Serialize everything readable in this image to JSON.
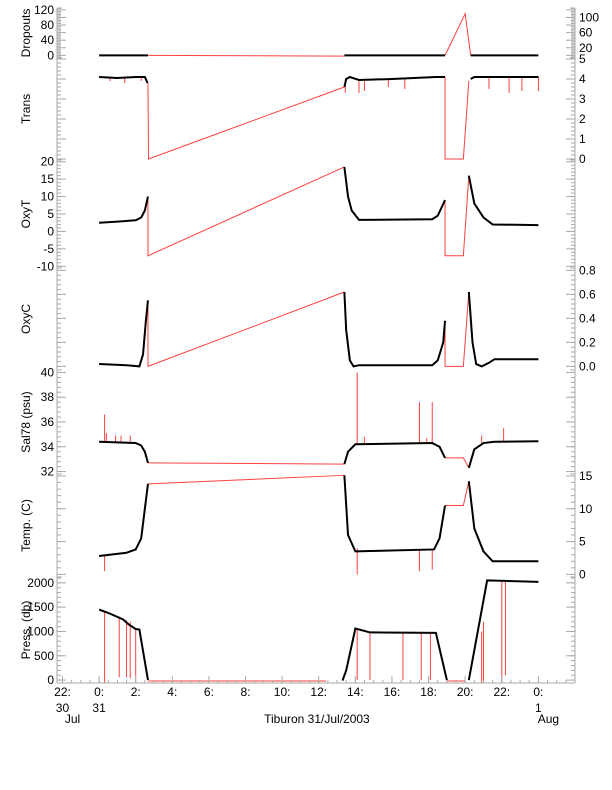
{
  "chart_data": {
    "type": "line",
    "title": "Tiburon 31/Jul/2003",
    "xlim_hours_from_31jul_0000": [
      -2.3,
      26
    ],
    "x_ticks": [
      {
        "t": -2,
        "l1": "22:",
        "l2": "30",
        "l3": "Jul"
      },
      {
        "t": 0,
        "l1": "0:",
        "l2": "31",
        "l3": ""
      },
      {
        "t": 2,
        "l1": "2:",
        "l2": "",
        "l3": ""
      },
      {
        "t": 4,
        "l1": "4:",
        "l2": "",
        "l3": ""
      },
      {
        "t": 6,
        "l1": "6:",
        "l2": "",
        "l3": ""
      },
      {
        "t": 8,
        "l1": "8:",
        "l2": "",
        "l3": ""
      },
      {
        "t": 10,
        "l1": "10:",
        "l2": "",
        "l3": ""
      },
      {
        "t": 12,
        "l1": "12:",
        "l2": "",
        "l3": ""
      },
      {
        "t": 14,
        "l1": "14:",
        "l2": "",
        "l3": ""
      },
      {
        "t": 16,
        "l1": "16:",
        "l2": "",
        "l3": ""
      },
      {
        "t": 18,
        "l1": "18:",
        "l2": "",
        "l3": ""
      },
      {
        "t": 20,
        "l1": "20:",
        "l2": "",
        "l3": ""
      },
      {
        "t": 22,
        "l1": "22:",
        "l2": "",
        "l3": ""
      },
      {
        "t": 24,
        "l1": "0:",
        "l2": "1",
        "l3": "Aug"
      }
    ],
    "colors": {
      "measured": "#000000",
      "interpolated": "#ff4040",
      "axis": "#aaaaaa"
    },
    "panels": [
      {
        "ylabel": "Dropouts",
        "ylim": [
          -7,
          125
        ],
        "ticks": [
          0,
          20,
          40,
          60,
          80,
          100,
          120
        ],
        "tick_labels": [
          "0",
          "20",
          "40",
          "60",
          "80",
          "100",
          "120"
        ],
        "black": [
          [
            [
              0,
              0
            ],
            [
              2.67,
              0
            ]
          ],
          [
            [
              13.4,
              0
            ],
            [
              18.9,
              0
            ]
          ],
          [
            [
              20.3,
              0
            ],
            [
              24,
              0
            ]
          ]
        ],
        "red": [
          [
            [
              2.67,
              0
            ],
            [
              13.4,
              -2
            ]
          ],
          [
            [
              18.9,
              0
            ],
            [
              20,
              110
            ],
            [
              20.3,
              0
            ]
          ]
        ],
        "spikes": []
      },
      {
        "ylabel": "Trans",
        "ylim": [
          -0.05,
          5.05
        ],
        "ticks": [
          0,
          1,
          2,
          3,
          4,
          5
        ],
        "tick_labels": [
          "0",
          "1",
          "2",
          "3",
          "4",
          "5"
        ],
        "black": [
          [
            [
              0,
              4.1
            ],
            [
              1,
              4.05
            ],
            [
              2,
              4.1
            ],
            [
              2.5,
              4.1
            ],
            [
              2.65,
              3.8
            ]
          ],
          [
            [
              13.4,
              3.6
            ],
            [
              13.5,
              4.0
            ],
            [
              13.7,
              4.1
            ],
            [
              14.2,
              3.95
            ],
            [
              16,
              4.0
            ],
            [
              18.4,
              4.1
            ],
            [
              18.9,
              4.1
            ]
          ],
          [
            [
              20.3,
              4.0
            ],
            [
              20.5,
              4.1
            ],
            [
              22,
              4.1
            ],
            [
              24,
              4.1
            ]
          ]
        ],
        "red": [
          [
            [
              2.67,
              3.8
            ],
            [
              2.7,
              0
            ],
            [
              13.4,
              3.6
            ]
          ],
          [
            [
              18.9,
              4.1
            ],
            [
              18.9,
              0
            ],
            [
              19.9,
              0
            ],
            [
              20.2,
              3.9
            ]
          ]
        ],
        "spikes": [
          [
            0.6,
            4.1,
            3.9
          ],
          [
            1.4,
            4.1,
            3.8
          ],
          [
            2.3,
            4.1,
            3.9
          ],
          [
            13.45,
            4.0,
            3.3
          ],
          [
            14.2,
            4.0,
            3.3
          ],
          [
            14.5,
            4.0,
            3.4
          ],
          [
            15.8,
            4.0,
            3.6
          ],
          [
            16.7,
            4.0,
            3.5
          ],
          [
            21.3,
            4.1,
            3.5
          ],
          [
            22.4,
            4.1,
            3.3
          ],
          [
            23.1,
            4.1,
            3.4
          ],
          [
            24,
            4.1,
            3.4
          ]
        ]
      },
      {
        "ylabel": "OxyT",
        "ylim": [
          -10.5,
          20.5
        ],
        "ticks": [
          -10,
          -5,
          0,
          5,
          10,
          15,
          20
        ],
        "tick_labels": [
          "-10",
          "-5",
          "0",
          "5",
          "10",
          "15",
          "20"
        ],
        "black": [
          [
            [
              0,
              2.5
            ],
            [
              1,
              2.8
            ],
            [
              2,
              3.2
            ],
            [
              2.3,
              4
            ],
            [
              2.5,
              6
            ],
            [
              2.67,
              10
            ]
          ],
          [
            [
              13.4,
              18.5
            ],
            [
              13.6,
              10
            ],
            [
              13.8,
              6
            ],
            [
              14.2,
              3.3
            ],
            [
              18.2,
              3.5
            ],
            [
              18.5,
              4.5
            ],
            [
              18.9,
              9
            ]
          ],
          [
            [
              20.2,
              16
            ],
            [
              20.5,
              8
            ],
            [
              21,
              4
            ],
            [
              21.5,
              2
            ],
            [
              24,
              1.8
            ]
          ]
        ],
        "red": [
          [
            [
              2.67,
              10
            ],
            [
              2.67,
              -7
            ],
            [
              13.4,
              18.5
            ]
          ],
          [
            [
              18.9,
              9
            ],
            [
              18.9,
              -7
            ],
            [
              19.9,
              -7
            ],
            [
              20.2,
              16
            ]
          ]
        ],
        "spikes": []
      },
      {
        "ylabel": "OxyC",
        "ylim": [
          -0.03,
          0.82
        ],
        "ticks": [
          0,
          0.2,
          0.4,
          0.6,
          0.8
        ],
        "tick_labels": [
          "0.0",
          "0.2",
          "0.4",
          "0.6",
          "0.8"
        ],
        "black": [
          [
            [
              0,
              0.02
            ],
            [
              1.5,
              0.01
            ],
            [
              2.2,
              0.0
            ],
            [
              2.4,
              0.1
            ],
            [
              2.55,
              0.37
            ],
            [
              2.67,
              0.55
            ]
          ],
          [
            [
              13.4,
              0.62
            ],
            [
              13.5,
              0.3
            ],
            [
              13.7,
              0.05
            ],
            [
              13.9,
              0.0
            ],
            [
              14.2,
              0.01
            ],
            [
              18.2,
              0.01
            ],
            [
              18.5,
              0.05
            ],
            [
              18.8,
              0.2
            ],
            [
              18.9,
              0.38
            ]
          ],
          [
            [
              20.2,
              0.62
            ],
            [
              20.4,
              0.2
            ],
            [
              20.6,
              0.02
            ],
            [
              20.9,
              0.0
            ],
            [
              21.3,
              0.03
            ],
            [
              21.6,
              0.06
            ],
            [
              24,
              0.06
            ]
          ]
        ],
        "red": [
          [
            [
              2.67,
              0.55
            ],
            [
              2.67,
              0
            ],
            [
              13.4,
              0.62
            ]
          ],
          [
            [
              18.9,
              0.38
            ],
            [
              18.9,
              0
            ],
            [
              19.9,
              0
            ],
            [
              20.2,
              0.62
            ]
          ]
        ],
        "spikes": []
      },
      {
        "ylabel": "Sal78 (psu)",
        "ylim": [
          31.8,
          40.2
        ],
        "ticks": [
          32,
          34,
          36,
          38,
          40
        ],
        "tick_labels": [
          "32",
          "34",
          "36",
          "38",
          "40"
        ],
        "black": [
          [
            [
              0,
              34.4
            ],
            [
              2,
              34.3
            ],
            [
              2.3,
              34.1
            ],
            [
              2.5,
              33.6
            ],
            [
              2.67,
              32.7
            ]
          ],
          [
            [
              13.4,
              32.6
            ],
            [
              13.6,
              33.6
            ],
            [
              14,
              34.2
            ],
            [
              18.2,
              34.3
            ],
            [
              18.6,
              34
            ],
            [
              18.9,
              33.1
            ]
          ],
          [
            [
              20.2,
              32.3
            ],
            [
              20.5,
              33.8
            ],
            [
              21,
              34.3
            ],
            [
              21.6,
              34.4
            ],
            [
              24,
              34.45
            ]
          ]
        ],
        "red": [
          [
            [
              2.67,
              32.7
            ],
            [
              13.4,
              32.6
            ]
          ],
          [
            [
              18.9,
              33.1
            ],
            [
              19.9,
              33.1
            ],
            [
              20.2,
              32.3
            ]
          ]
        ],
        "spikes": [
          [
            0.3,
            34.4,
            36.6
          ],
          [
            0.4,
            34.4,
            35.1
          ],
          [
            0.9,
            34.4,
            34.9
          ],
          [
            1.2,
            34.4,
            34.9
          ],
          [
            1.7,
            34.4,
            34.9
          ],
          [
            14.1,
            34.2,
            40
          ],
          [
            14.5,
            34.2,
            34.8
          ],
          [
            17.5,
            34.3,
            37.6
          ],
          [
            18.2,
            34.3,
            37.6
          ],
          [
            17.9,
            34.3,
            34.7
          ],
          [
            20.9,
            34.3,
            34.9
          ],
          [
            22.1,
            34.4,
            35.5
          ]
        ]
      },
      {
        "ylabel": "Temp. (C)",
        "ylim": [
          -0.4,
          15.3
        ],
        "ticks": [
          0,
          5,
          10,
          15
        ],
        "tick_labels": [
          "0",
          "5",
          "10",
          "15"
        ],
        "black": [
          [
            [
              0,
              2.8
            ],
            [
              1.5,
              3.3
            ],
            [
              2,
              3.8
            ],
            [
              2.3,
              5.5
            ],
            [
              2.5,
              10
            ],
            [
              2.67,
              13.8
            ]
          ],
          [
            [
              13.4,
              15.1
            ],
            [
              13.6,
              6
            ],
            [
              14,
              3.5
            ],
            [
              18.3,
              3.8
            ],
            [
              18.6,
              5.5
            ],
            [
              18.9,
              10.5
            ]
          ],
          [
            [
              20.2,
              14.2
            ],
            [
              20.5,
              7
            ],
            [
              21,
              3.5
            ],
            [
              21.5,
              2
            ],
            [
              24,
              2
            ]
          ]
        ],
        "red": [
          [
            [
              2.67,
              13.8
            ],
            [
              13.4,
              15.1
            ]
          ],
          [
            [
              18.9,
              10.5
            ],
            [
              19.9,
              10.5
            ],
            [
              20.2,
              14.2
            ]
          ]
        ],
        "spikes": [
          [
            0.3,
            2.8,
            0.5
          ],
          [
            14.1,
            4,
            0
          ],
          [
            17.5,
            3.8,
            0.5
          ],
          [
            18.2,
            3.8,
            0.7
          ]
        ]
      },
      {
        "ylabel": "Press. (db)",
        "ylim": [
          -60,
          2120
        ],
        "ticks": [
          0,
          500,
          1000,
          1500,
          2000
        ],
        "tick_labels": [
          "0",
          "500",
          "1000",
          "1500",
          "2000"
        ],
        "black": [
          [
            [
              0,
              1450
            ],
            [
              0.5,
              1380
            ],
            [
              1,
              1300
            ],
            [
              1.3,
              1250
            ],
            [
              1.6,
              1150
            ],
            [
              2,
              1050
            ],
            [
              2.2,
              1040
            ],
            [
              2.4,
              600
            ],
            [
              2.67,
              0
            ]
          ],
          [
            [
              13.3,
              -10
            ],
            [
              13.5,
              200
            ],
            [
              14,
              1060
            ],
            [
              14.8,
              980
            ],
            [
              18.4,
              970
            ],
            [
              19,
              0
            ]
          ],
          [
            [
              20.2,
              0
            ],
            [
              21.2,
              2050
            ],
            [
              24,
              2020
            ]
          ]
        ],
        "red": [
          [
            [
              2.67,
              -20
            ],
            [
              12.4,
              -20
            ]
          ],
          [
            [
              19,
              -20
            ],
            [
              20,
              -20
            ]
          ]
        ],
        "spikes": [
          [
            0.3,
            1400,
            -50
          ],
          [
            1.1,
            1300,
            60
          ],
          [
            1.5,
            1230,
            60
          ],
          [
            1.7,
            1200,
            40
          ],
          [
            2.0,
            1050,
            50
          ],
          [
            14.1,
            1060,
            0
          ],
          [
            14.8,
            980,
            0
          ],
          [
            16.6,
            970,
            0
          ],
          [
            17.6,
            970,
            0
          ],
          [
            18.1,
            970,
            0
          ],
          [
            20.9,
            1000,
            -50
          ],
          [
            21.0,
            1200,
            -50
          ],
          [
            22.0,
            2040,
            -50
          ],
          [
            22.2,
            2040,
            100
          ]
        ]
      }
    ]
  }
}
